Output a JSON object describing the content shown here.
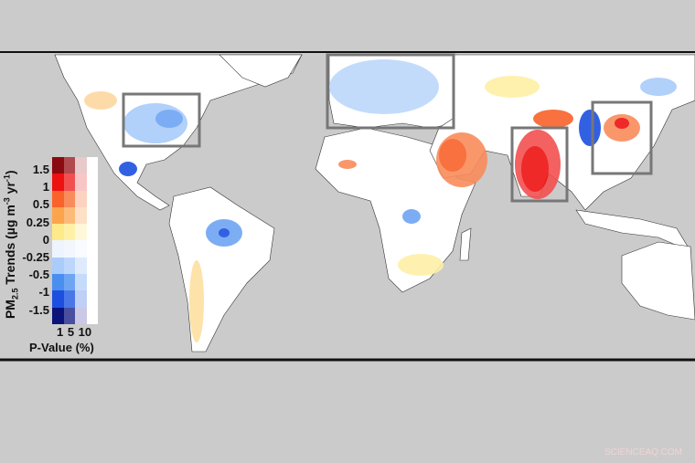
{
  "legend": {
    "title": "PM2.5 Trends (µg m-3 yr-1)",
    "title_parts": {
      "pm": "PM",
      "sub": "2.5",
      "rest": " Trends (µg m",
      "sup1": "-3",
      "mid": " yr",
      "sup2": "-1",
      ")": ")"
    },
    "ticks": [
      "1.5",
      "1",
      "0.5",
      "0.25",
      "0",
      "-0.25",
      "-0.5",
      "-1",
      "-1.5"
    ],
    "pvalue_ticks": "1 5 10",
    "pvalue_label": "P-Value (%)",
    "colors": [
      [
        "#8b0a0f",
        "#b04a4e",
        "#e8caca",
        "#ffffff"
      ],
      [
        "#ee1111",
        "#f25050",
        "#f9c6c6",
        "#ffffff"
      ],
      [
        "#f9622a",
        "#f98c5c",
        "#fbd3c0",
        "#ffffff"
      ],
      [
        "#fca44d",
        "#fdbb7a",
        "#fde0c6",
        "#ffffff"
      ],
      [
        "#feea88",
        "#fef0a6",
        "#fef8d8",
        "#ffffff"
      ],
      [
        "#eef4fe",
        "#f2f7fe",
        "#f8fbff",
        "#ffffff"
      ],
      [
        "#a9ccfa",
        "#bcd7fb",
        "#dfeafd",
        "#ffffff"
      ],
      [
        "#4a8ef0",
        "#6ea5f3",
        "#c6dbf9",
        "#ffffff"
      ],
      [
        "#1c4fe0",
        "#4a77e8",
        "#c0cff5",
        "#ffffff"
      ],
      [
        "#0b137a",
        "#4a4e9e",
        "#cac8e6",
        "#ffffff"
      ]
    ]
  },
  "colors": {
    "ocean": "#cbcbcb",
    "land": "#ffffff",
    "box": "#777777"
  },
  "watermark": "SCIENCEAQ.COM"
}
